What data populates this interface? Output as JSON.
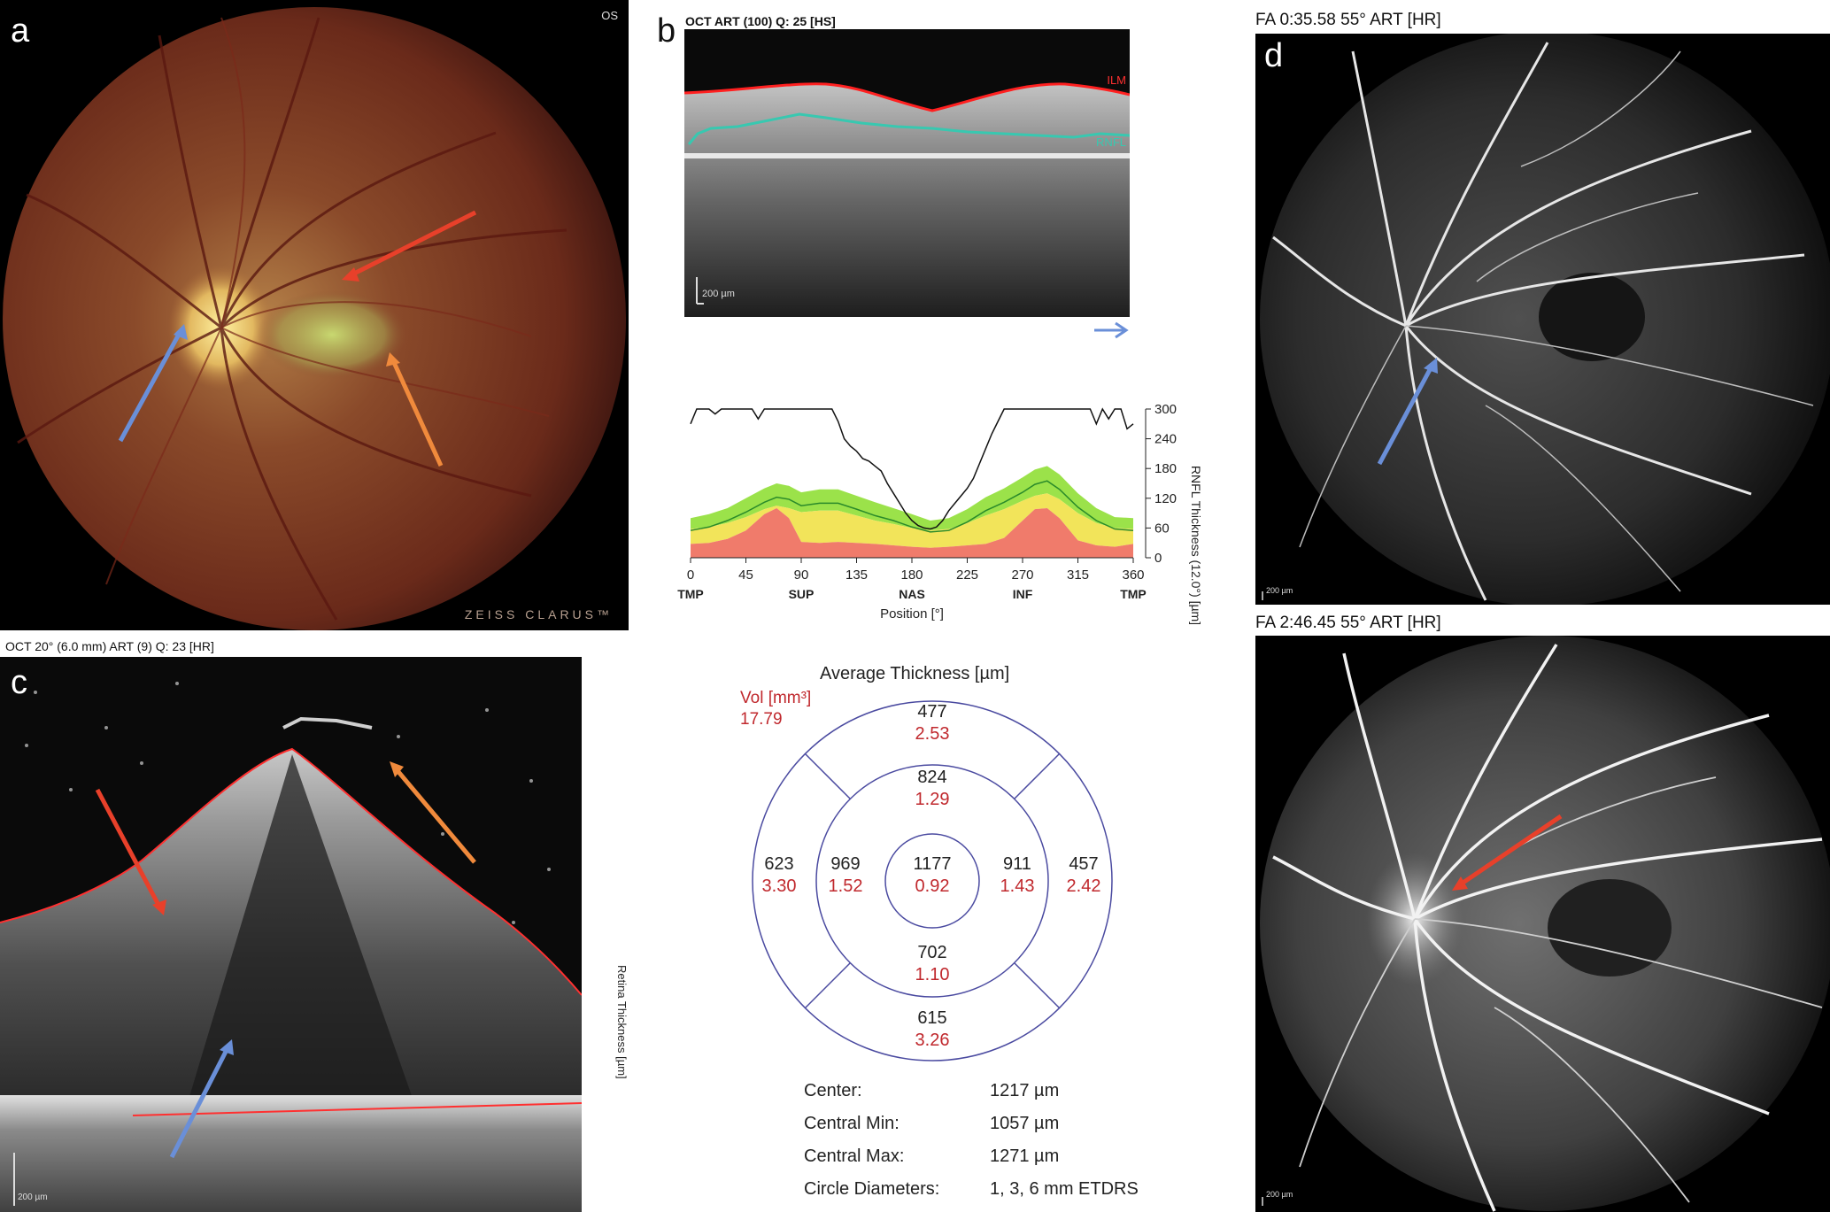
{
  "panel_a": {
    "letter": "a",
    "eye": "OS",
    "watermark": "ZEISS CLARUS™"
  },
  "panel_b": {
    "letter": "b",
    "header": "OCT ART (100) Q: 25 [HS]",
    "ilm_label": "ILM",
    "rnfl_label": "RNFL",
    "scalebar": "200 µm"
  },
  "panel_c": {
    "letter": "c",
    "header": "OCT 20° (6.0 mm) ART (9) Q: 23 [HR]",
    "scalebar": "200 µm"
  },
  "panel_d": {
    "letter": "d",
    "header_top": "FA 0:35.58 55° ART [HR]",
    "header_bottom": "FA 2:46.45 55° ART [HR]",
    "scalebar_top": "200 µm",
    "scalebar_bottom": "200 µm"
  },
  "chart_data": {
    "type": "line",
    "xlabel": "Position [°]",
    "ylabel": "RNFL Thickness (12.0°) [µm]",
    "xlim": [
      0,
      360
    ],
    "ylim": [
      0,
      300
    ],
    "x_ticks": [
      0,
      45,
      90,
      135,
      180,
      225,
      270,
      315,
      360
    ],
    "y_ticks": [
      0,
      60,
      120,
      180,
      240,
      300
    ],
    "sector_labels": [
      {
        "x": 0,
        "label": "TMP"
      },
      {
        "x": 90,
        "label": "SUP"
      },
      {
        "x": 180,
        "label": "NAS"
      },
      {
        "x": 270,
        "label": "INF"
      },
      {
        "x": 360,
        "label": "TMP"
      }
    ],
    "series": [
      {
        "x": [
          0,
          5,
          10,
          15,
          20,
          25,
          30,
          35,
          40,
          45,
          50,
          55,
          60,
          65,
          70,
          75,
          80,
          85,
          90,
          95,
          100,
          105,
          110,
          115,
          120,
          125,
          130,
          135,
          140,
          145,
          150,
          155,
          160,
          165,
          170,
          175,
          180,
          185,
          190,
          195,
          200,
          205,
          210,
          215,
          220,
          225,
          230,
          235,
          240,
          245,
          250,
          255,
          260,
          265,
          270,
          275,
          280,
          285,
          290,
          295,
          300,
          305,
          310,
          315,
          320,
          325,
          330,
          335,
          340,
          345,
          350,
          355,
          360
        ],
        "values": [
          270,
          300,
          300,
          300,
          290,
          300,
          300,
          300,
          300,
          300,
          300,
          280,
          300,
          300,
          300,
          300,
          300,
          300,
          300,
          300,
          300,
          300,
          300,
          300,
          275,
          240,
          225,
          215,
          200,
          195,
          185,
          175,
          150,
          130,
          110,
          90,
          75,
          65,
          60,
          58,
          62,
          75,
          95,
          110,
          125,
          140,
          160,
          190,
          220,
          250,
          275,
          300,
          300,
          300,
          300,
          300,
          300,
          300,
          300,
          300,
          300,
          300,
          300,
          300,
          300,
          300,
          270,
          300,
          280,
          300,
          300,
          260,
          270
        ]
      },
      {
        "x": [
          0,
          15,
          30,
          45,
          60,
          70,
          80,
          90,
          105,
          120,
          135,
          150,
          165,
          180,
          195,
          210,
          225,
          240,
          255,
          270,
          280,
          290,
          300,
          315,
          330,
          345,
          360
        ],
        "values": [
          55,
          62,
          75,
          92,
          112,
          122,
          118,
          105,
          110,
          110,
          98,
          85,
          75,
          62,
          52,
          55,
          72,
          95,
          112,
          132,
          148,
          155,
          138,
          102,
          75,
          58,
          55
        ]
      },
      {
        "x": [
          0,
          15,
          30,
          45,
          60,
          70,
          80,
          90,
          105,
          120,
          135,
          150,
          165,
          180,
          195,
          210,
          225,
          240,
          255,
          270,
          280,
          290,
          300,
          315,
          330,
          345,
          360
        ],
        "values": [
          80,
          88,
          100,
          120,
          140,
          150,
          145,
          132,
          138,
          138,
          125,
          112,
          100,
          88,
          75,
          80,
          98,
          122,
          140,
          162,
          178,
          185,
          168,
          130,
          100,
          82,
          80
        ]
      },
      {
        "x": [
          0,
          15,
          30,
          45,
          60,
          70,
          80,
          90,
          105,
          120,
          135,
          150,
          165,
          180,
          195,
          210,
          225,
          240,
          255,
          270,
          280,
          290,
          300,
          315,
          330,
          345,
          360
        ],
        "values": [
          58,
          62,
          70,
          82,
          98,
          105,
          100,
          92,
          95,
          95,
          85,
          75,
          68,
          60,
          55,
          58,
          70,
          85,
          98,
          115,
          125,
          130,
          118,
          90,
          70,
          60,
          58
        ]
      },
      {
        "x": [
          0,
          15,
          30,
          45,
          60,
          70,
          80,
          90,
          105,
          120,
          135,
          150,
          165,
          180,
          195,
          210,
          225,
          240,
          255,
          270,
          280,
          290,
          300,
          315,
          330,
          345,
          360
        ],
        "values": [
          28,
          30,
          38,
          55,
          88,
          100,
          80,
          32,
          30,
          32,
          30,
          28,
          25,
          22,
          20,
          22,
          25,
          28,
          40,
          75,
          98,
          100,
          80,
          35,
          25,
          22,
          28
        ]
      }
    ]
  },
  "etdrs": {
    "title": "Average Thickness [µm]",
    "vol_label": "Vol [mm³]",
    "vol_value": "17.79",
    "side_label": "Retina Thickness [µm]",
    "center": {
      "thickness": "1177",
      "volume": "0.92"
    },
    "inner": {
      "superior": {
        "thickness": "824",
        "volume": "1.29"
      },
      "nasal_left": {
        "thickness": "969",
        "volume": "1.52"
      },
      "temporal_right": {
        "thickness": "911",
        "volume": "1.43"
      },
      "inferior": {
        "thickness": "702",
        "volume": "1.10"
      }
    },
    "outer": {
      "superior": {
        "thickness": "477",
        "volume": "2.53"
      },
      "left": {
        "thickness": "623",
        "volume": "3.30"
      },
      "right": {
        "thickness": "457",
        "volume": "2.42"
      },
      "inferior": {
        "thickness": "615",
        "volume": "3.26"
      }
    },
    "stats": [
      {
        "label": "Center:",
        "value": "1217 µm"
      },
      {
        "label": "Central Min:",
        "value": "1057 µm"
      },
      {
        "label": "Central Max:",
        "value": "1271 µm"
      },
      {
        "label": "Circle Diameters:",
        "value": "1, 3, 6 mm ETDRS"
      }
    ]
  },
  "colors": {
    "arrow_red": "#e8402a",
    "arrow_blue": "#6a8fd8",
    "arrow_orange": "#f08a3c",
    "normal_green": "#9be24a",
    "band_yellow": "#f2e45a",
    "band_red": "#f07b6b",
    "etdrs_circle": "#4a4aa0",
    "etdrs_red": "#c0282d"
  }
}
